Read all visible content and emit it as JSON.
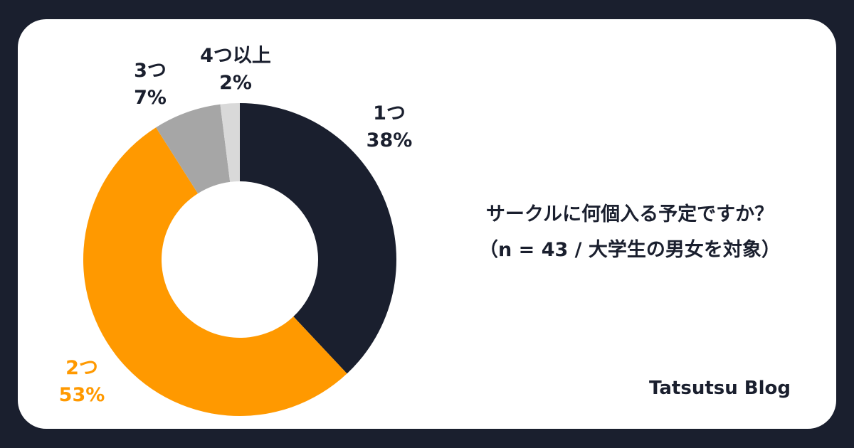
{
  "chart_data": {
    "type": "pie",
    "variant": "donut",
    "title": "サークルに何個入る予定ですか？",
    "subtitle": "（n = 43 / 大学生の男女を対象）",
    "categories": [
      "1つ",
      "2つ",
      "3つ",
      "4つ以上"
    ],
    "values": [
      38,
      53,
      7,
      2
    ],
    "unit": "%",
    "colors": [
      "#1a1f2e",
      "#ff9900",
      "#a6a6a6",
      "#d9d9d9"
    ],
    "start_angle": "12 o'clock, clockwise",
    "legend": "none (labels placed outside slices)"
  },
  "labels": [
    {
      "name": "1つ",
      "pct": "38%"
    },
    {
      "name": "2つ",
      "pct": "53%"
    },
    {
      "name": "3つ",
      "pct": "7%"
    },
    {
      "name": "4つ以上",
      "pct": "2%"
    }
  ],
  "title": {
    "line1": "サークルに何個入る予定ですか？",
    "line2": "（n = 43 / 大学生の男女を対象）"
  },
  "brand": "Tatsutsu Blog",
  "colors": {
    "background": "#1a1f2e",
    "card": "#ffffff",
    "accent": "#ff9900",
    "text": "#1a1f2e"
  }
}
